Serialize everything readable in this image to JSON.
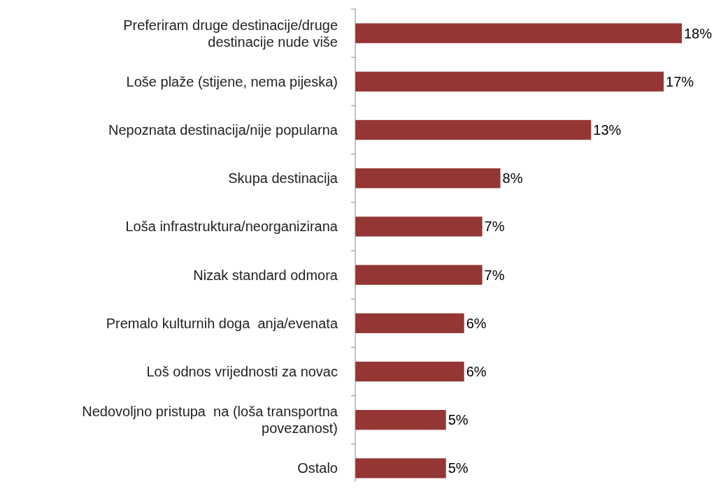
{
  "chart_data": {
    "type": "bar",
    "orientation": "horizontal",
    "categories": [
      "Preferiram druge destinacije/druge\ndestinacije nude više",
      "Loše plaže (stijene, nema pijeska)",
      "Nepoznata destinacija/nije popularna",
      "Skupa destinacija",
      "Loša infrastruktura/neorganizirana",
      "Nizak standard odmora",
      "Premalo kulturnih doga  anja/evenata",
      "Loš odnos vrijednosti za novac",
      "Nedovoljno pristupa  na (loša transportna\npovezanost)",
      "Ostalo"
    ],
    "values": [
      18,
      17,
      13,
      8,
      7,
      7,
      6,
      6,
      5,
      5
    ],
    "value_labels": [
      "18%",
      "17%",
      "13%",
      "8%",
      "7%",
      "7%",
      "6%",
      "6%",
      "5%",
      "5%"
    ],
    "color": "#943634"
  }
}
